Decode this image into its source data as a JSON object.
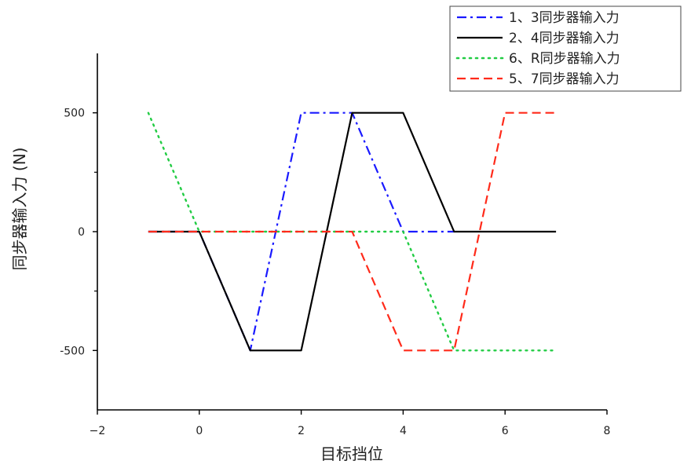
{
  "chart_data": {
    "type": "line",
    "xlabel": "目标挡位",
    "ylabel": "同步器输入力 (N)",
    "xlim": [
      -2,
      8
    ],
    "ylim": [
      -750,
      750
    ],
    "xticks": [
      -2,
      0,
      2,
      4,
      6,
      8
    ],
    "xtick_labels": [
      "−2",
      "0",
      "2",
      "4",
      "6",
      "8"
    ],
    "yticks": [
      500,
      0,
      -500
    ],
    "ytick_labels": [
      "500",
      "0",
      "-500"
    ],
    "grid": false,
    "legend_position": "top-right",
    "series": [
      {
        "name": "1、3同步器输入力",
        "color": "#1a1aff",
        "style": "dashdot",
        "x": [
          -1,
          0,
          1,
          2,
          3,
          4,
          5
        ],
        "y": [
          0,
          0,
          -500,
          500,
          500,
          0,
          0
        ]
      },
      {
        "name": "2、4同步器输入力",
        "color": "#000000",
        "style": "solid",
        "x": [
          -1,
          0,
          1,
          2,
          3,
          4,
          5,
          6,
          7
        ],
        "y": [
          0,
          0,
          -500,
          -500,
          500,
          500,
          0,
          0,
          0
        ]
      },
      {
        "name": "6、R同步器输入力",
        "color": "#22cc44",
        "style": "dotted",
        "x": [
          -1,
          0,
          1,
          2,
          3,
          4,
          5,
          6,
          7
        ],
        "y": [
          500,
          0,
          0,
          0,
          0,
          0,
          -500,
          -500,
          -500
        ]
      },
      {
        "name": "5、7同步器输入力",
        "color": "#ff2a1a",
        "style": "dashed",
        "x": [
          -1,
          0,
          1,
          2,
          3,
          4,
          5,
          6,
          7
        ],
        "y": [
          0,
          0,
          0,
          0,
          0,
          -500,
          -500,
          500,
          500
        ]
      }
    ]
  }
}
